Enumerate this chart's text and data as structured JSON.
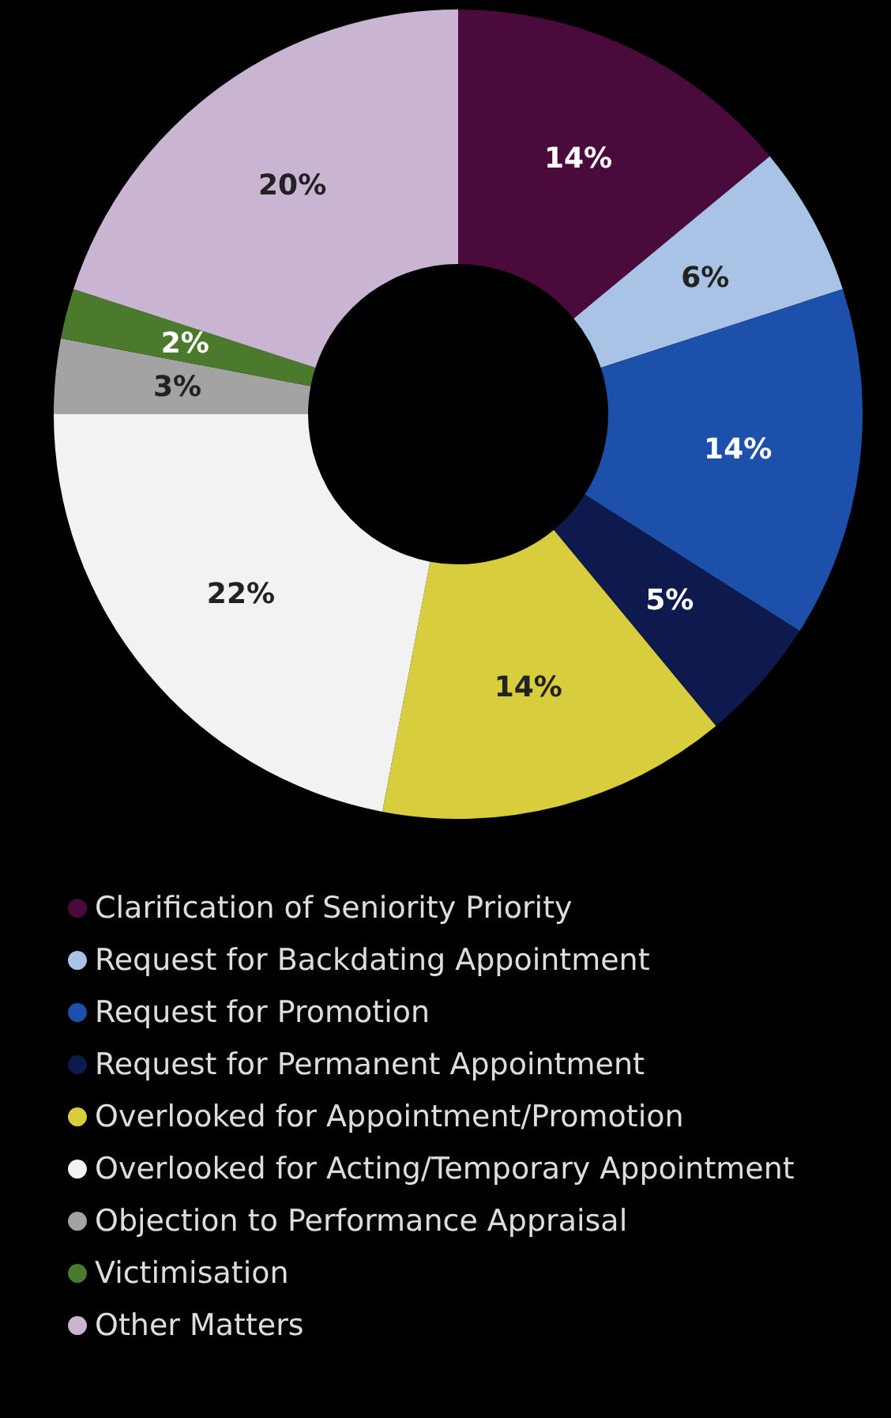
{
  "chart_data": {
    "type": "donut",
    "categories": [
      "Clarification of Seniority Priority",
      "Request for Backdating Appointment",
      "Request for Promotion",
      "Request for Permanent Appointment",
      "Overlooked for Appointment/Promotion",
      "Overlooked for Acting/Temporary Appointment",
      "Objection to Performance Appraisal",
      "Victimisation",
      "Other Matters"
    ],
    "values": [
      14,
      6,
      14,
      5,
      14,
      22,
      3,
      2,
      20
    ],
    "value_labels": [
      "14%",
      "6%",
      "14%",
      "5%",
      "14%",
      "22%",
      "3%",
      "2%",
      "20%"
    ],
    "colors": [
      "#4a0b3c",
      "#a9c3e6",
      "#1d50aa",
      "#0e1a4e",
      "#d8cd3c",
      "#f2f2f2",
      "#a3a3a3",
      "#4c7a2c",
      "#c9b5d1"
    ],
    "legend": "bottom"
  }
}
